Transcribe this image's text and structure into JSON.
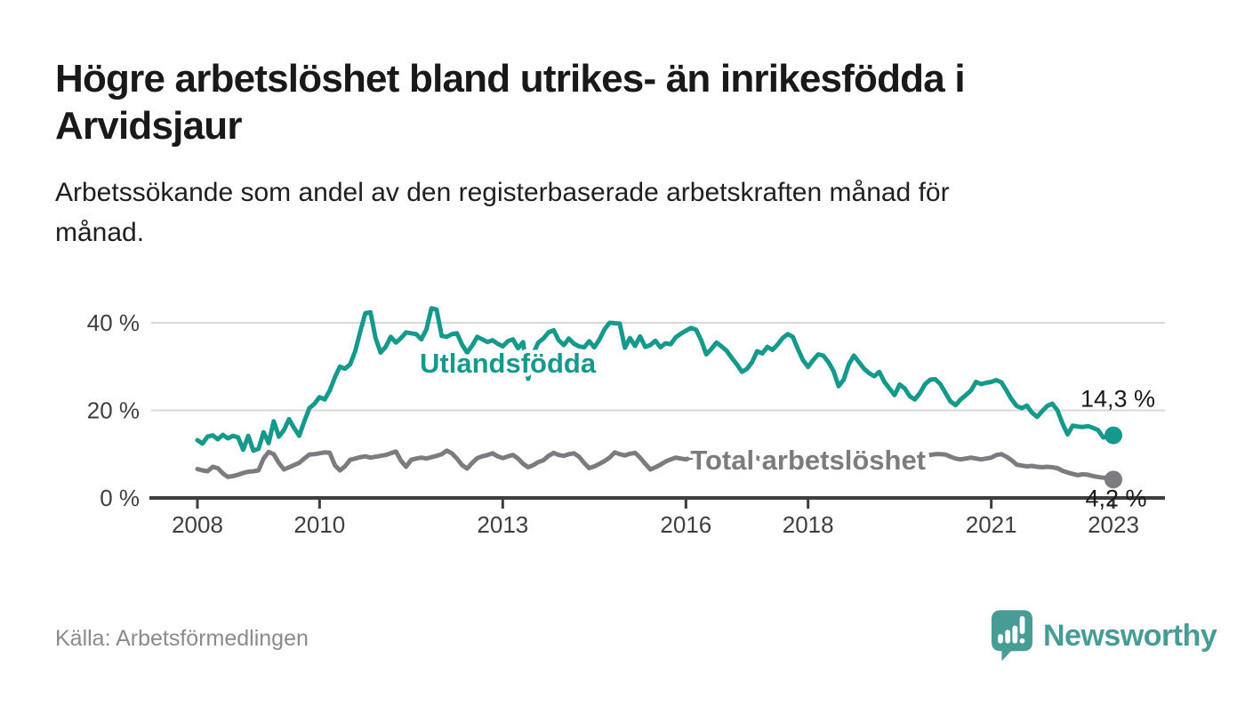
{
  "title": {
    "lines": [
      "Högre arbetslöshet bland utrikes- än inrikesfödda i",
      "Arvidsjaur"
    ]
  },
  "subtitle": {
    "lines": [
      "Arbetssökande som andel av den registerbaserade arbetskraften månad för",
      "månad."
    ]
  },
  "footer": {
    "source": "Källa: Arbetsförmedlingen",
    "brand": "Newsworthy",
    "logo_icon": "newsworthy-bubble-barchart-icon"
  },
  "colors": {
    "accent_teal": "#14998c",
    "series_gray": "#7b7b80",
    "text_dark": "#191919",
    "axis_text": "#3f3f3f",
    "axis_line": "#3f3f3f",
    "grid": "#d8d8d8",
    "source_text": "#8a8b8e",
    "logo_teal": "#479c95",
    "background": "#ffffff"
  },
  "chart_data": {
    "type": "line",
    "x_unit": "month",
    "x_range": [
      "2008-01",
      "2023-01"
    ],
    "x_tick_years": [
      2008,
      2010,
      2013,
      2016,
      2018,
      2021,
      2023
    ],
    "x_tick_labels": [
      "2008",
      "2010",
      "2013",
      "2016",
      "2018",
      "2021",
      "2023"
    ],
    "y_ticks": [
      0,
      20,
      40
    ],
    "y_tick_labels": [
      "0 %",
      "20 %",
      "40 %"
    ],
    "ylim": [
      0,
      45
    ],
    "grid": "horizontal",
    "legend": "inline-labels",
    "series": [
      {
        "name": "Utlandsfödda",
        "color": "#14998c",
        "end_value": 14.3,
        "end_label": "14,3 %",
        "label_anchor": {
          "month_index": 61,
          "value": 28.6
        },
        "values": [
          13.2,
          12.4,
          14,
          14.3,
          13.4,
          14.4,
          13.6,
          14.2,
          13.8,
          11,
          14.2,
          10.8,
          11.2,
          15,
          12.5,
          17.5,
          14,
          15.5,
          18,
          16,
          14.2,
          17.5,
          20.5,
          21.5,
          23,
          22.5,
          24.5,
          27.5,
          30,
          29.5,
          30.5,
          33.5,
          38,
          42.2,
          42.4,
          36.5,
          33.2,
          34.5,
          36.8,
          35.5,
          36.5,
          37.8,
          37.6,
          37.4,
          36.2,
          38.5,
          43.3,
          43,
          37,
          36.8,
          37.4,
          37.6,
          35,
          33.2,
          34.8,
          36.8,
          36.2,
          35.6,
          36,
          35.2,
          34.6,
          35.8,
          36.2,
          34.2,
          35.6,
          27.2,
          33,
          35.5,
          36.4,
          37.8,
          38.3,
          36,
          34.9,
          36.4,
          35.2,
          34.6,
          34.4,
          35.8,
          34.4,
          36.2,
          38.5,
          40,
          39.9,
          39.8,
          34.3,
          36.5,
          34.7,
          36.9,
          34.5,
          34.9,
          35.9,
          34.4,
          35.3,
          35.1,
          36.7,
          37.5,
          38.2,
          38.8,
          38.4,
          36,
          32.8,
          34,
          35.5,
          34.6,
          33.6,
          32,
          30.5,
          28.8,
          29.5,
          31,
          33.5,
          33,
          34.5,
          33.8,
          35,
          36.5,
          37.4,
          36.8,
          34,
          31.5,
          29.9,
          31.5,
          32.8,
          32.5,
          31,
          29,
          25.5,
          27,
          30.5,
          32.5,
          31,
          29.5,
          28.5,
          27.8,
          28.8,
          26.5,
          25,
          23.5,
          25.9,
          25,
          23.2,
          22.5,
          24,
          26,
          27,
          27.1,
          26,
          24,
          22,
          21.2,
          22.5,
          23.5,
          24.5,
          26.5,
          26,
          26.3,
          26.5,
          26.9,
          26.4,
          24.5,
          22.5,
          21,
          20.5,
          21.1,
          19.5,
          18.5,
          19.8,
          21,
          21.5,
          20,
          17,
          14.5,
          16.5,
          16.3,
          16.2,
          16.4,
          16,
          15.5,
          13.8,
          14,
          14.3
        ]
      },
      {
        "name": "Total arbetslöshet",
        "color": "#7b7b80",
        "end_value": 4.2,
        "end_label": "4,2 %",
        "label_anchor": {
          "month_index": 120,
          "value": 6.5
        },
        "values": [
          6.6,
          6.3,
          6.1,
          7.1,
          6.8,
          5.6,
          4.8,
          5,
          5.3,
          5.7,
          6,
          6.1,
          6.3,
          9,
          10.5,
          10,
          8,
          6.5,
          7,
          7.5,
          8,
          9,
          9.9,
          10,
          10.2,
          10.4,
          10.3,
          7.5,
          6.3,
          7.2,
          8.7,
          9,
          9.3,
          9.5,
          9.2,
          9.4,
          9.6,
          9.8,
          10.2,
          10.6,
          8.5,
          7.1,
          8.7,
          9,
          9.2,
          9,
          9.3,
          9.6,
          10,
          10.8,
          10.2,
          9,
          7.5,
          6.7,
          8,
          9.1,
          9.5,
          9.8,
          10.2,
          9.5,
          9.1,
          9.5,
          9.8,
          9,
          7.8,
          7,
          7.5,
          8.2,
          8.6,
          9.6,
          10.3,
          9.8,
          9.6,
          10,
          10.2,
          9.4,
          8,
          6.8,
          7.2,
          7.8,
          8.4,
          9.2,
          10.4,
          10,
          9.7,
          10.1,
          10.3,
          9.2,
          7.8,
          6.5,
          7,
          7.6,
          8.3,
          8.8,
          9.2,
          9,
          8.8,
          9.3,
          9,
          8.2,
          7.2,
          6.4,
          6.8,
          7.3,
          7.8,
          8.2,
          8.6,
          8.4,
          8.5,
          8.9,
          9.2,
          8.5,
          7.4,
          6.6,
          7,
          7.5,
          8,
          8.4,
          8.8,
          8.6,
          8.4,
          8.8,
          9,
          8.2,
          7.2,
          6.3,
          6.7,
          7.2,
          7.7,
          8.1,
          8.5,
          8.3,
          8.2,
          8.6,
          8.8,
          8,
          7,
          6.5,
          7.2,
          7.8,
          8.4,
          8.8,
          9.2,
          9.6,
          9.8,
          10,
          10,
          9.9,
          9.4,
          9,
          8.8,
          9,
          9.2,
          9,
          8.8,
          9,
          9.2,
          9.8,
          10,
          9.4,
          8.6,
          7.6,
          7.4,
          7.2,
          7.3,
          7.1,
          7,
          7.1,
          7,
          6.8,
          6.2,
          5.8,
          5.5,
          5.2,
          5.4,
          5.3,
          5,
          4.8,
          4.6,
          4.7,
          4.2
        ]
      }
    ]
  }
}
